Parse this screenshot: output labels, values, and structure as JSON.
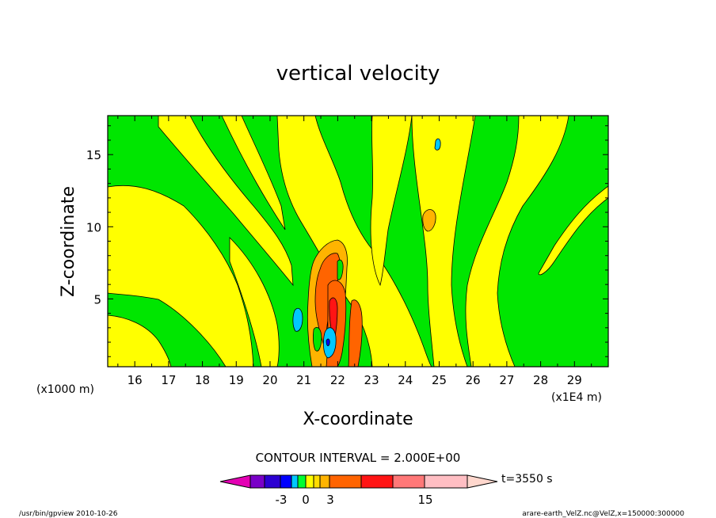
{
  "chart_data": {
    "type": "heatmap",
    "title": "vertical velocity",
    "xlabel": "X-coordinate",
    "ylabel": "Z-coordinate",
    "x_unit_label": "(x1E4 m)",
    "y_unit_label": "(x1000 m)",
    "xlim": [
      15.2,
      30.0
    ],
    "ylim": [
      0.3,
      17.7
    ],
    "xticks": [
      16,
      17,
      18,
      19,
      20,
      21,
      22,
      23,
      24,
      25,
      26,
      27,
      28,
      29
    ],
    "yticks": [
      5,
      10,
      15
    ],
    "contour_interval_text": "CONTOUR INTERVAL = 2.000E+00",
    "colorbar": {
      "colors": [
        "#e400b4",
        "#7a00c8",
        "#2c00d2",
        "#0000ff",
        "#00c8ff",
        "#00ff32",
        "#ffff00",
        "#ffdc00",
        "#ffb400",
        "#ff6400",
        "#ff1414",
        "#ff7878",
        "#ffbec3",
        "#ffd7cd"
      ],
      "tick_labels": [
        "-3",
        "0",
        "3",
        "15"
      ],
      "time_label": "t=3550 s"
    },
    "colors": {
      "green": "#00e600",
      "yellow": "#ffff00",
      "lightorange": "#ffb400",
      "orange": "#ff6400",
      "red": "#ff1414",
      "cyan": "#00c8ff",
      "blue": "#0000ff"
    }
  },
  "footer": {
    "left": "/usr/bin/gpview 2010-10-26",
    "right": "arare-earth_VelZ.nc@VelZ,x=150000:300000"
  }
}
